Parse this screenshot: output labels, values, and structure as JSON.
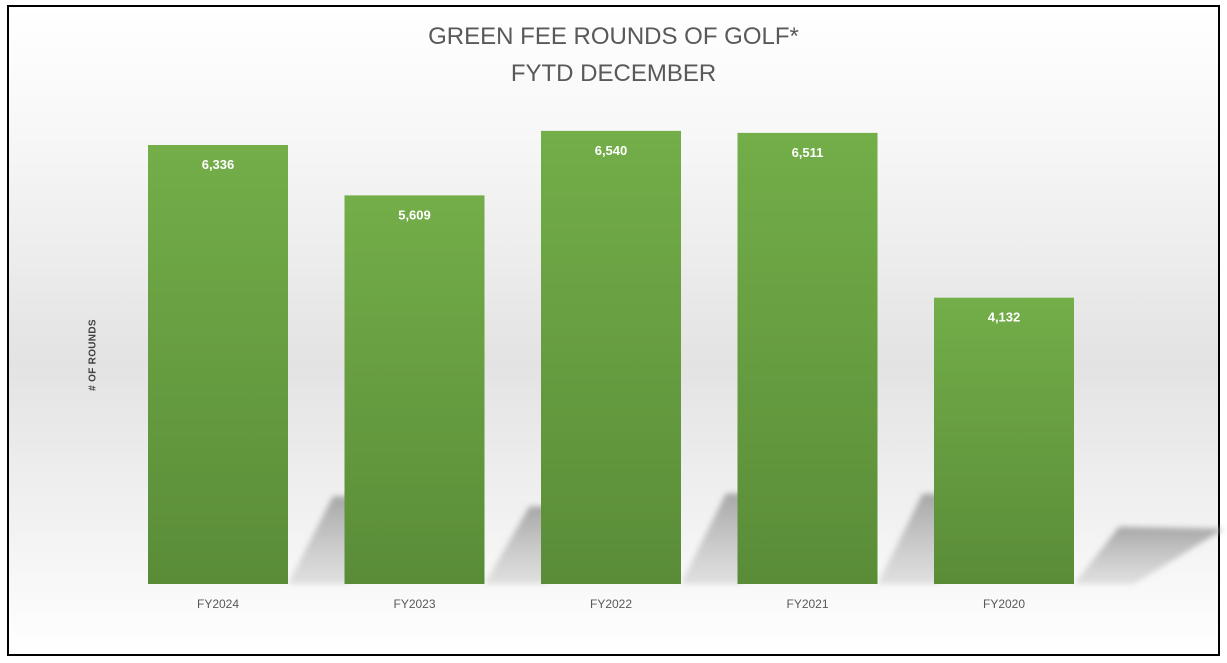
{
  "chart_data": {
    "type": "bar",
    "title": "GREEN FEE ROUNDS OF GOLF*",
    "subtitle": "FYTD DECEMBER",
    "xlabel": "",
    "ylabel": "# OF ROUNDS",
    "categories": [
      "FY2024",
      "FY2023",
      "FY2022",
      "FY2021",
      "FY2020"
    ],
    "values": [
      6336,
      5609,
      6540,
      6511,
      4132
    ],
    "value_labels": [
      "6,336",
      "5,609",
      "6,540",
      "6,511",
      "4,132"
    ],
    "ylim": [
      0,
      7000
    ],
    "grid": false,
    "legend": "none",
    "bar_color": "#70ad47"
  }
}
